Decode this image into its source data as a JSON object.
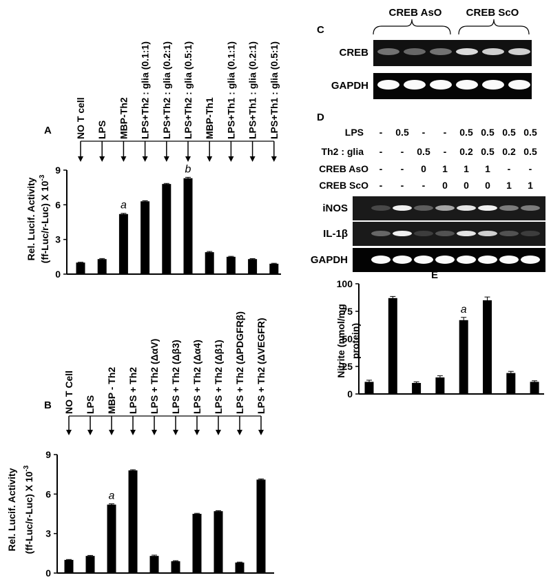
{
  "chart_data": [
    {
      "panel": "A",
      "type": "bar",
      "categories": [
        "NO T cell",
        "LPS",
        "MBP-Th2",
        "LPS+Th2 : glia (0.1:1)",
        "LPS+Th2 : glia (0.2:1)",
        "LPS+Th2 : glia (0.5:1)",
        "MBP-Th1",
        "LPS+Th1 : glia (0.1:1)",
        "LPS+Th1 : glia (0.2:1)",
        "LPS+Th1 : glia (0.5:1)"
      ],
      "values": [
        1.0,
        1.3,
        5.2,
        6.3,
        7.8,
        8.3,
        1.9,
        1.5,
        1.3,
        0.9
      ],
      "errors": [
        0.03,
        0.05,
        0.06,
        0.05,
        0.05,
        0.08,
        0.06,
        0.04,
        0.04,
        0.04
      ],
      "ylabel_line1": "Rel. Lucif. Activity",
      "ylabel_line2": "(ff-Luc/r-Luc) X 10",
      "ylabel_exp": "-3",
      "yticks": [
        "0",
        "3",
        "6",
        "9"
      ],
      "ylim": [
        0,
        9
      ],
      "annotations": [
        {
          "index": 2,
          "text": "a"
        },
        {
          "index": 5,
          "text": "b"
        }
      ]
    },
    {
      "panel": "B",
      "type": "bar",
      "categories": [
        "NO T Cell",
        "LPS",
        "MBP - Th2",
        "LPS + Th2",
        "LPS + Th2 (ΔαV)",
        "LPS + Th2 (Δβ3)",
        "LPS + Th2 (Δα4)",
        "LPS + Th2 (Δβ1)",
        "LPS + Th2 (ΔPDGFRβ)",
        "LPS + Th2 (ΔVEGFR)"
      ],
      "values": [
        1.0,
        1.3,
        5.2,
        7.8,
        1.3,
        0.9,
        4.5,
        4.7,
        0.8,
        7.1
      ],
      "errors": [
        0.03,
        0.04,
        0.06,
        0.05,
        0.06,
        0.04,
        0.04,
        0.04,
        0.03,
        0.05
      ],
      "ylabel_line1": "Rel. Lucif. Activity",
      "ylabel_line2": "(ff-Luc/r-Luc) X 10",
      "ylabel_exp": "-3",
      "yticks": [
        "0",
        "3",
        "6",
        "9"
      ],
      "ylim": [
        0,
        9
      ],
      "annotations": [
        {
          "index": 2,
          "text": "a"
        }
      ]
    },
    {
      "panel": "E",
      "type": "bar",
      "categories": [
        "",
        "",
        "",
        "",
        "",
        "",
        "",
        ""
      ],
      "values": [
        11,
        87,
        10,
        15,
        67,
        85,
        19,
        11
      ],
      "errors": [
        1.5,
        1.5,
        1.0,
        1.5,
        2.5,
        3.0,
        1.5,
        1.0
      ],
      "ylabel_line1": "Nitrite (nmol/mg",
      "ylabel_line2": "protein)",
      "yticks": [
        "0",
        "25",
        "50",
        "75",
        "100"
      ],
      "ylim": [
        0,
        100
      ],
      "annotations": [
        {
          "index": 4,
          "text": "a"
        }
      ]
    }
  ],
  "panel_labels": {
    "a": "A",
    "b": "B",
    "c": "C",
    "d": "D",
    "e": "E"
  },
  "gel_c": {
    "groups": [
      "CREB AsO",
      "CREB ScO"
    ],
    "rows": [
      {
        "label": "CREB",
        "bands": [
          0.35,
          0.3,
          0.35,
          0.85,
          0.8,
          0.8
        ]
      },
      {
        "label": "GAPDH",
        "bands": [
          1,
          1,
          1,
          1,
          1,
          1
        ]
      }
    ]
  },
  "gel_d": {
    "conditions": [
      {
        "label": "LPS",
        "values": [
          "-",
          "0.5",
          "-",
          "-",
          "0.5",
          "0.5",
          "0.5",
          "0.5"
        ]
      },
      {
        "label": "Th2 : glia",
        "values": [
          "-",
          "-",
          "0.5",
          "-",
          "0.2",
          "0.5",
          "0.2",
          "0.5"
        ]
      },
      {
        "label": "CREB AsO",
        "values": [
          "-",
          "-",
          "0",
          "1",
          "1",
          "1",
          "-",
          "-"
        ]
      },
      {
        "label": "CREB ScO",
        "values": [
          "-",
          "-",
          "-",
          "0",
          "0",
          "0",
          "1",
          "1"
        ]
      }
    ],
    "rows": [
      {
        "label": "iNOS",
        "bands": [
          0.15,
          0.95,
          0.25,
          0.6,
          0.9,
          0.95,
          0.4,
          0.4
        ]
      },
      {
        "label": "IL-1β",
        "bands": [
          0.3,
          0.95,
          0.1,
          0.2,
          0.9,
          0.8,
          0.2,
          0.1
        ]
      },
      {
        "label": "GAPDH",
        "bands": [
          1,
          1,
          1,
          1,
          1,
          1,
          1,
          1
        ]
      }
    ]
  }
}
